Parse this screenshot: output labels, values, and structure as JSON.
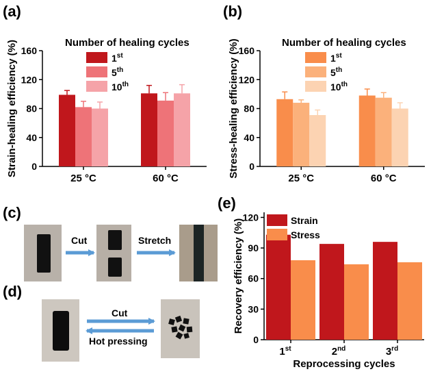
{
  "panels": {
    "a": "(a)",
    "b": "(b)",
    "c": "(c)",
    "d": "(d)",
    "e": "(e)"
  },
  "colors": {
    "a": [
      "#c0171c",
      "#ee7378",
      "#f5a3a8"
    ],
    "b": [
      "#f98d4b",
      "#fbb17b",
      "#fcd3b2"
    ],
    "e": [
      "#c0171c",
      "#f98d4b"
    ],
    "arrow": "#5b9bd5"
  },
  "chart_data": [
    {
      "id": "a",
      "type": "bar",
      "ylabel": "Strain-healing efficiency (%)",
      "ylim": [
        0,
        160
      ],
      "yticks": [
        0,
        40,
        80,
        120,
        160
      ],
      "categories": [
        "25 °C",
        "60 °C"
      ],
      "legend_title": "Number of healing cycles",
      "legend_position": "top-center",
      "series": [
        {
          "name_base": "1",
          "name_sup": "st",
          "values": [
            99,
            101
          ],
          "errors": [
            6,
            11
          ]
        },
        {
          "name_base": "5",
          "name_sup": "th",
          "values": [
            82,
            91
          ],
          "errors": [
            8,
            11
          ]
        },
        {
          "name_base": "10",
          "name_sup": "th",
          "values": [
            80,
            101
          ],
          "errors": [
            9,
            12
          ]
        }
      ]
    },
    {
      "id": "b",
      "type": "bar",
      "ylabel": "Stress-healing efficiency (%)",
      "ylim": [
        0,
        160
      ],
      "yticks": [
        0,
        40,
        80,
        120,
        160
      ],
      "categories": [
        "25 °C",
        "60 °C"
      ],
      "legend_title": "Number of healing cycles",
      "legend_position": "top-center",
      "series": [
        {
          "name_base": "1",
          "name_sup": "st",
          "values": [
            93,
            98
          ],
          "errors": [
            10,
            9
          ]
        },
        {
          "name_base": "5",
          "name_sup": "th",
          "values": [
            88,
            95
          ],
          "errors": [
            4,
            7
          ]
        },
        {
          "name_base": "10",
          "name_sup": "th",
          "values": [
            71,
            80
          ],
          "errors": [
            7,
            8
          ]
        }
      ]
    },
    {
      "id": "e",
      "type": "bar",
      "ylabel": "Recovery efficiency (%)",
      "xlabel": "Reprocessing cycles",
      "ylim": [
        0,
        125
      ],
      "yticks": [
        0,
        30,
        60,
        90,
        120
      ],
      "categories": [
        {
          "base": "1",
          "sup": "st"
        },
        {
          "base": "2",
          "sup": "nd"
        },
        {
          "base": "3",
          "sup": "rd"
        }
      ],
      "legend_position": "top-left",
      "series": [
        {
          "name": "Strain",
          "values": [
            103,
            94,
            96
          ]
        },
        {
          "name": "Stress",
          "values": [
            78,
            74,
            76
          ]
        }
      ]
    }
  ],
  "photos": {
    "c": {
      "arrow1": "Cut",
      "arrow2": "Stretch"
    },
    "d": {
      "forward": "Cut",
      "backward": "Hot pressing"
    }
  }
}
